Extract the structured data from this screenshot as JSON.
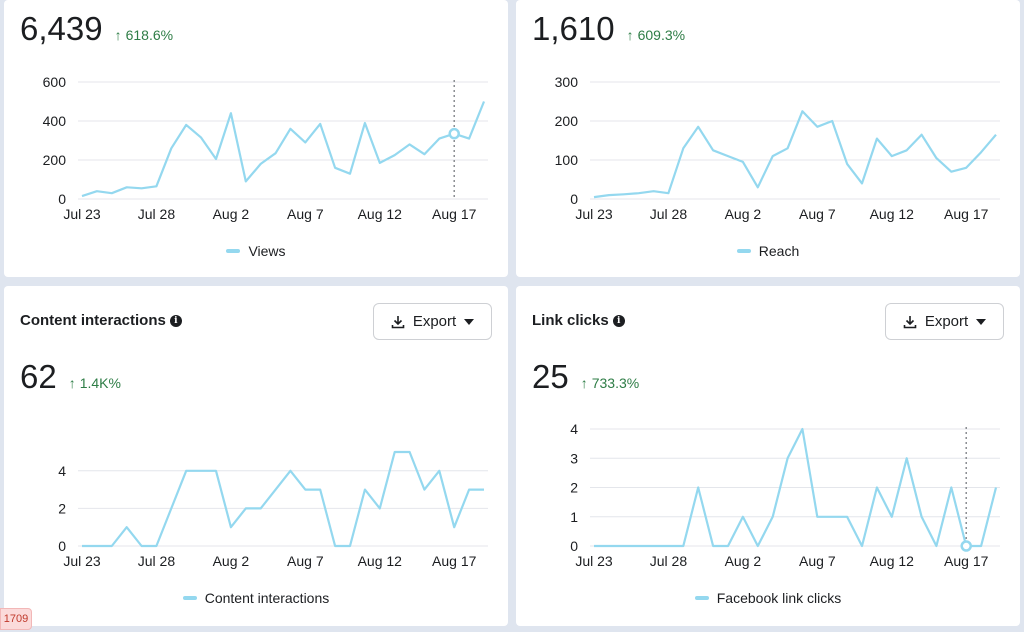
{
  "colors": {
    "line": "#94d8ef",
    "grid": "#e4e6eb",
    "axis_text": "#1c1e21",
    "delta_up": "#2e7d46"
  },
  "badge": {
    "text": "1709"
  },
  "cards": [
    {
      "id": "views",
      "title": "",
      "value": "6,439",
      "delta": "618.6%",
      "delta_icon": "arrow-up-icon",
      "legend": "Views",
      "chart_data": {
        "type": "line",
        "x_ticks": [
          "Jul 23",
          "Jul 28",
          "Aug 2",
          "Aug 7",
          "Aug 12",
          "Aug 17"
        ],
        "x": [
          "Jul 23",
          "Jul 24",
          "Jul 25",
          "Jul 26",
          "Jul 27",
          "Jul 28",
          "Jul 29",
          "Jul 30",
          "Jul 31",
          "Aug 1",
          "Aug 2",
          "Aug 3",
          "Aug 4",
          "Aug 5",
          "Aug 6",
          "Aug 7",
          "Aug 8",
          "Aug 9",
          "Aug 10",
          "Aug 11",
          "Aug 12",
          "Aug 13",
          "Aug 14",
          "Aug 15",
          "Aug 16",
          "Aug 17",
          "Aug 18"
        ],
        "values": [
          15,
          40,
          30,
          60,
          55,
          65,
          260,
          380,
          315,
          205,
          440,
          90,
          180,
          235,
          360,
          290,
          385,
          160,
          130,
          390,
          185,
          225,
          280,
          230,
          310,
          335,
          310
        ],
        "extra_point": 500,
        "y_ticks": [
          0,
          200,
          400,
          600
        ],
        "ylim": [
          0,
          600
        ],
        "marker_index": 25,
        "series_name": "Views"
      }
    },
    {
      "id": "reach",
      "title": "",
      "value": "1,610",
      "delta": "609.3%",
      "delta_icon": "arrow-up-icon",
      "legend": "Reach",
      "chart_data": {
        "type": "line",
        "x_ticks": [
          "Jul 23",
          "Jul 28",
          "Aug 2",
          "Aug 7",
          "Aug 12",
          "Aug 17"
        ],
        "values": [
          5,
          10,
          12,
          15,
          20,
          15,
          130,
          185,
          125,
          110,
          95,
          30,
          110,
          130,
          225,
          185,
          200,
          90,
          40,
          155,
          110,
          125,
          165,
          105,
          70,
          80,
          120,
          165
        ],
        "y_ticks": [
          0,
          100,
          200,
          300
        ],
        "ylim": [
          0,
          300
        ],
        "series_name": "Reach"
      }
    },
    {
      "id": "interactions",
      "title": "Content interactions",
      "value": "62",
      "delta": "1.4K%",
      "delta_icon": "arrow-up-icon",
      "legend": "Content interactions",
      "export_label": "Export",
      "chart_data": {
        "type": "line",
        "x_ticks": [
          "Jul 23",
          "Jul 28",
          "Aug 2",
          "Aug 7",
          "Aug 12",
          "Aug 17"
        ],
        "values": [
          0,
          0,
          0,
          1,
          0,
          0,
          2,
          4,
          4,
          4,
          1,
          2,
          2,
          3,
          4,
          3,
          3,
          0,
          0,
          3,
          2,
          5,
          5,
          3,
          4,
          1,
          3,
          3
        ],
        "y_ticks": [
          0,
          2,
          4
        ],
        "ylim": [
          0,
          5
        ],
        "series_name": "Content interactions"
      }
    },
    {
      "id": "links",
      "title": "Link clicks",
      "value": "25",
      "delta": "733.3%",
      "delta_icon": "arrow-up-icon",
      "legend": "Facebook link clicks",
      "export_label": "Export",
      "chart_data": {
        "type": "line",
        "x_ticks": [
          "Jul 23",
          "Jul 28",
          "Aug 2",
          "Aug 7",
          "Aug 12",
          "Aug 17"
        ],
        "values": [
          0,
          0,
          0,
          0,
          0,
          0,
          0,
          2,
          0,
          0,
          1,
          0,
          1,
          3,
          4,
          1,
          1,
          1,
          0,
          2,
          1,
          3,
          1,
          0,
          2,
          0,
          0,
          2
        ],
        "y_ticks": [
          0,
          1,
          2,
          3,
          4
        ],
        "ylim": [
          0,
          4
        ],
        "marker_index": 25,
        "series_name": "Facebook link clicks"
      }
    }
  ]
}
